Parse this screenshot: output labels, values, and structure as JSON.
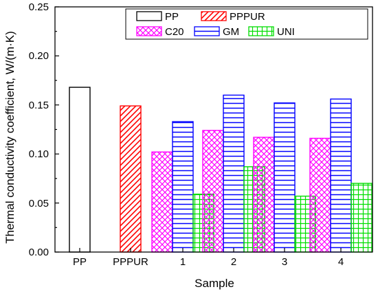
{
  "chart_data": {
    "type": "bar",
    "title": "",
    "xlabel": "Sample",
    "ylabel": "Thermal conductivity coefficient, W/(m·K)",
    "ylim": [
      0,
      0.25
    ],
    "yticks": [
      "0.00",
      "0.05",
      "0.10",
      "0.15",
      "0.20",
      "0.25"
    ],
    "categories": [
      "PP",
      "PPPUR",
      "1",
      "2",
      "3",
      "4"
    ],
    "series": [
      {
        "name": "PP",
        "values": [
          0.168,
          null,
          null,
          null,
          null,
          null
        ],
        "color": "#000000",
        "pattern": "none"
      },
      {
        "name": "PPPUR",
        "values": [
          null,
          0.149,
          null,
          null,
          null,
          null
        ],
        "color": "#ff0000",
        "pattern": "diagonal"
      },
      {
        "name": "C20",
        "values": [
          null,
          null,
          0.102,
          0.124,
          0.117,
          0.116
        ],
        "color": "#ff00ff",
        "pattern": "crosshatch"
      },
      {
        "name": "GM",
        "values": [
          null,
          null,
          0.133,
          0.16,
          0.152,
          0.156
        ],
        "color": "#0000ff",
        "pattern": "horizontal"
      },
      {
        "name": "UNI",
        "values": [
          null,
          null,
          0.059,
          0.087,
          0.057,
          0.07
        ],
        "color": "#00dd00",
        "pattern": "grid"
      }
    ],
    "grid": false,
    "legend_position": "top-center"
  }
}
